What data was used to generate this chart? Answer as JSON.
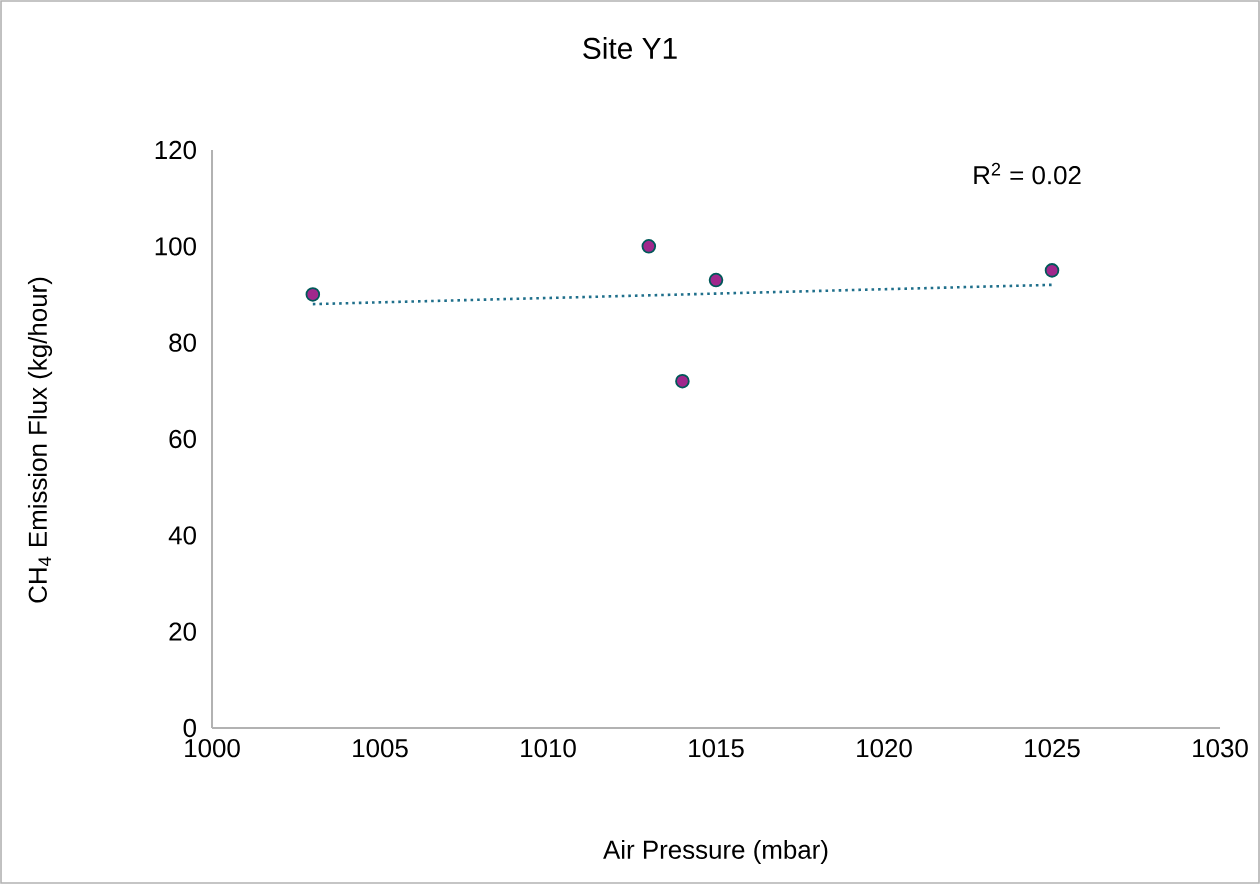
{
  "chart_data": {
    "type": "scatter",
    "title": "Site Y1",
    "xlabel": "Air Pressure (mbar)",
    "ylabel": "CH$_{4}$ Emission Flux (kg/hour)",
    "series": [
      {
        "color": "#a0288c",
        "values": [
          90,
          100,
          72,
          93,
          95
        ],
        "x": [
          1003,
          1013,
          1014,
          1015,
          1025
        ],
        "marker": "circle"
      },
      {
        "type": "line",
        "color": "#1f6f8b",
        "values": [
          88,
          92
        ],
        "x": [
          1003,
          1025
        ],
        "line_style": "dotted",
        "marker": "none"
      }
    ],
    "annotations": [
      "R$^{2}$ = 0.02"
    ],
    "xlim": [
      1000,
      1030
    ],
    "xticks": [
      1000,
      1005,
      1010,
      1015,
      1020,
      1025,
      1030
    ],
    "ylim": [
      0,
      120
    ],
    "yticks": [
      0,
      20,
      40,
      60,
      80,
      100,
      120
    ],
    "grid": false
  }
}
